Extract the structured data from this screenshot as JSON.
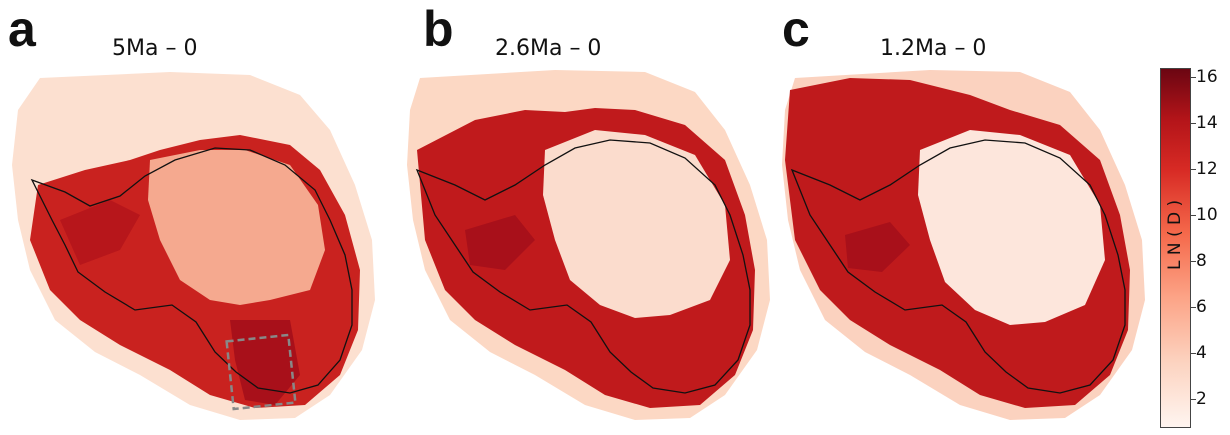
{
  "panels": [
    {
      "letter": "a",
      "title": "5Ma – 0",
      "colors": [
        "#fce0d0",
        "#c9221f",
        "#f5a98f",
        "#a8101a"
      ],
      "has_box": true
    },
    {
      "letter": "b",
      "title": "2.6Ma – 0",
      "colors": [
        "#fcd8c4",
        "#c01a1c",
        "#fbdccd",
        "#b3151b"
      ],
      "has_box": false
    },
    {
      "letter": "c",
      "title": "1.2Ma – 0",
      "colors": [
        "#fbd2bf",
        "#bf1a1c",
        "#fde6dc",
        "#b0141b"
      ],
      "has_box": false
    }
  ],
  "colorbar": {
    "label": "L N ( D )",
    "ticks": [
      "16",
      "14",
      "12",
      "10",
      "8",
      "6",
      "4",
      "2"
    ],
    "tick_values": [
      16,
      14,
      12,
      10,
      8,
      6,
      4,
      2
    ],
    "min": 0.8,
    "max": 16.6,
    "colormap": "Reds"
  }
}
